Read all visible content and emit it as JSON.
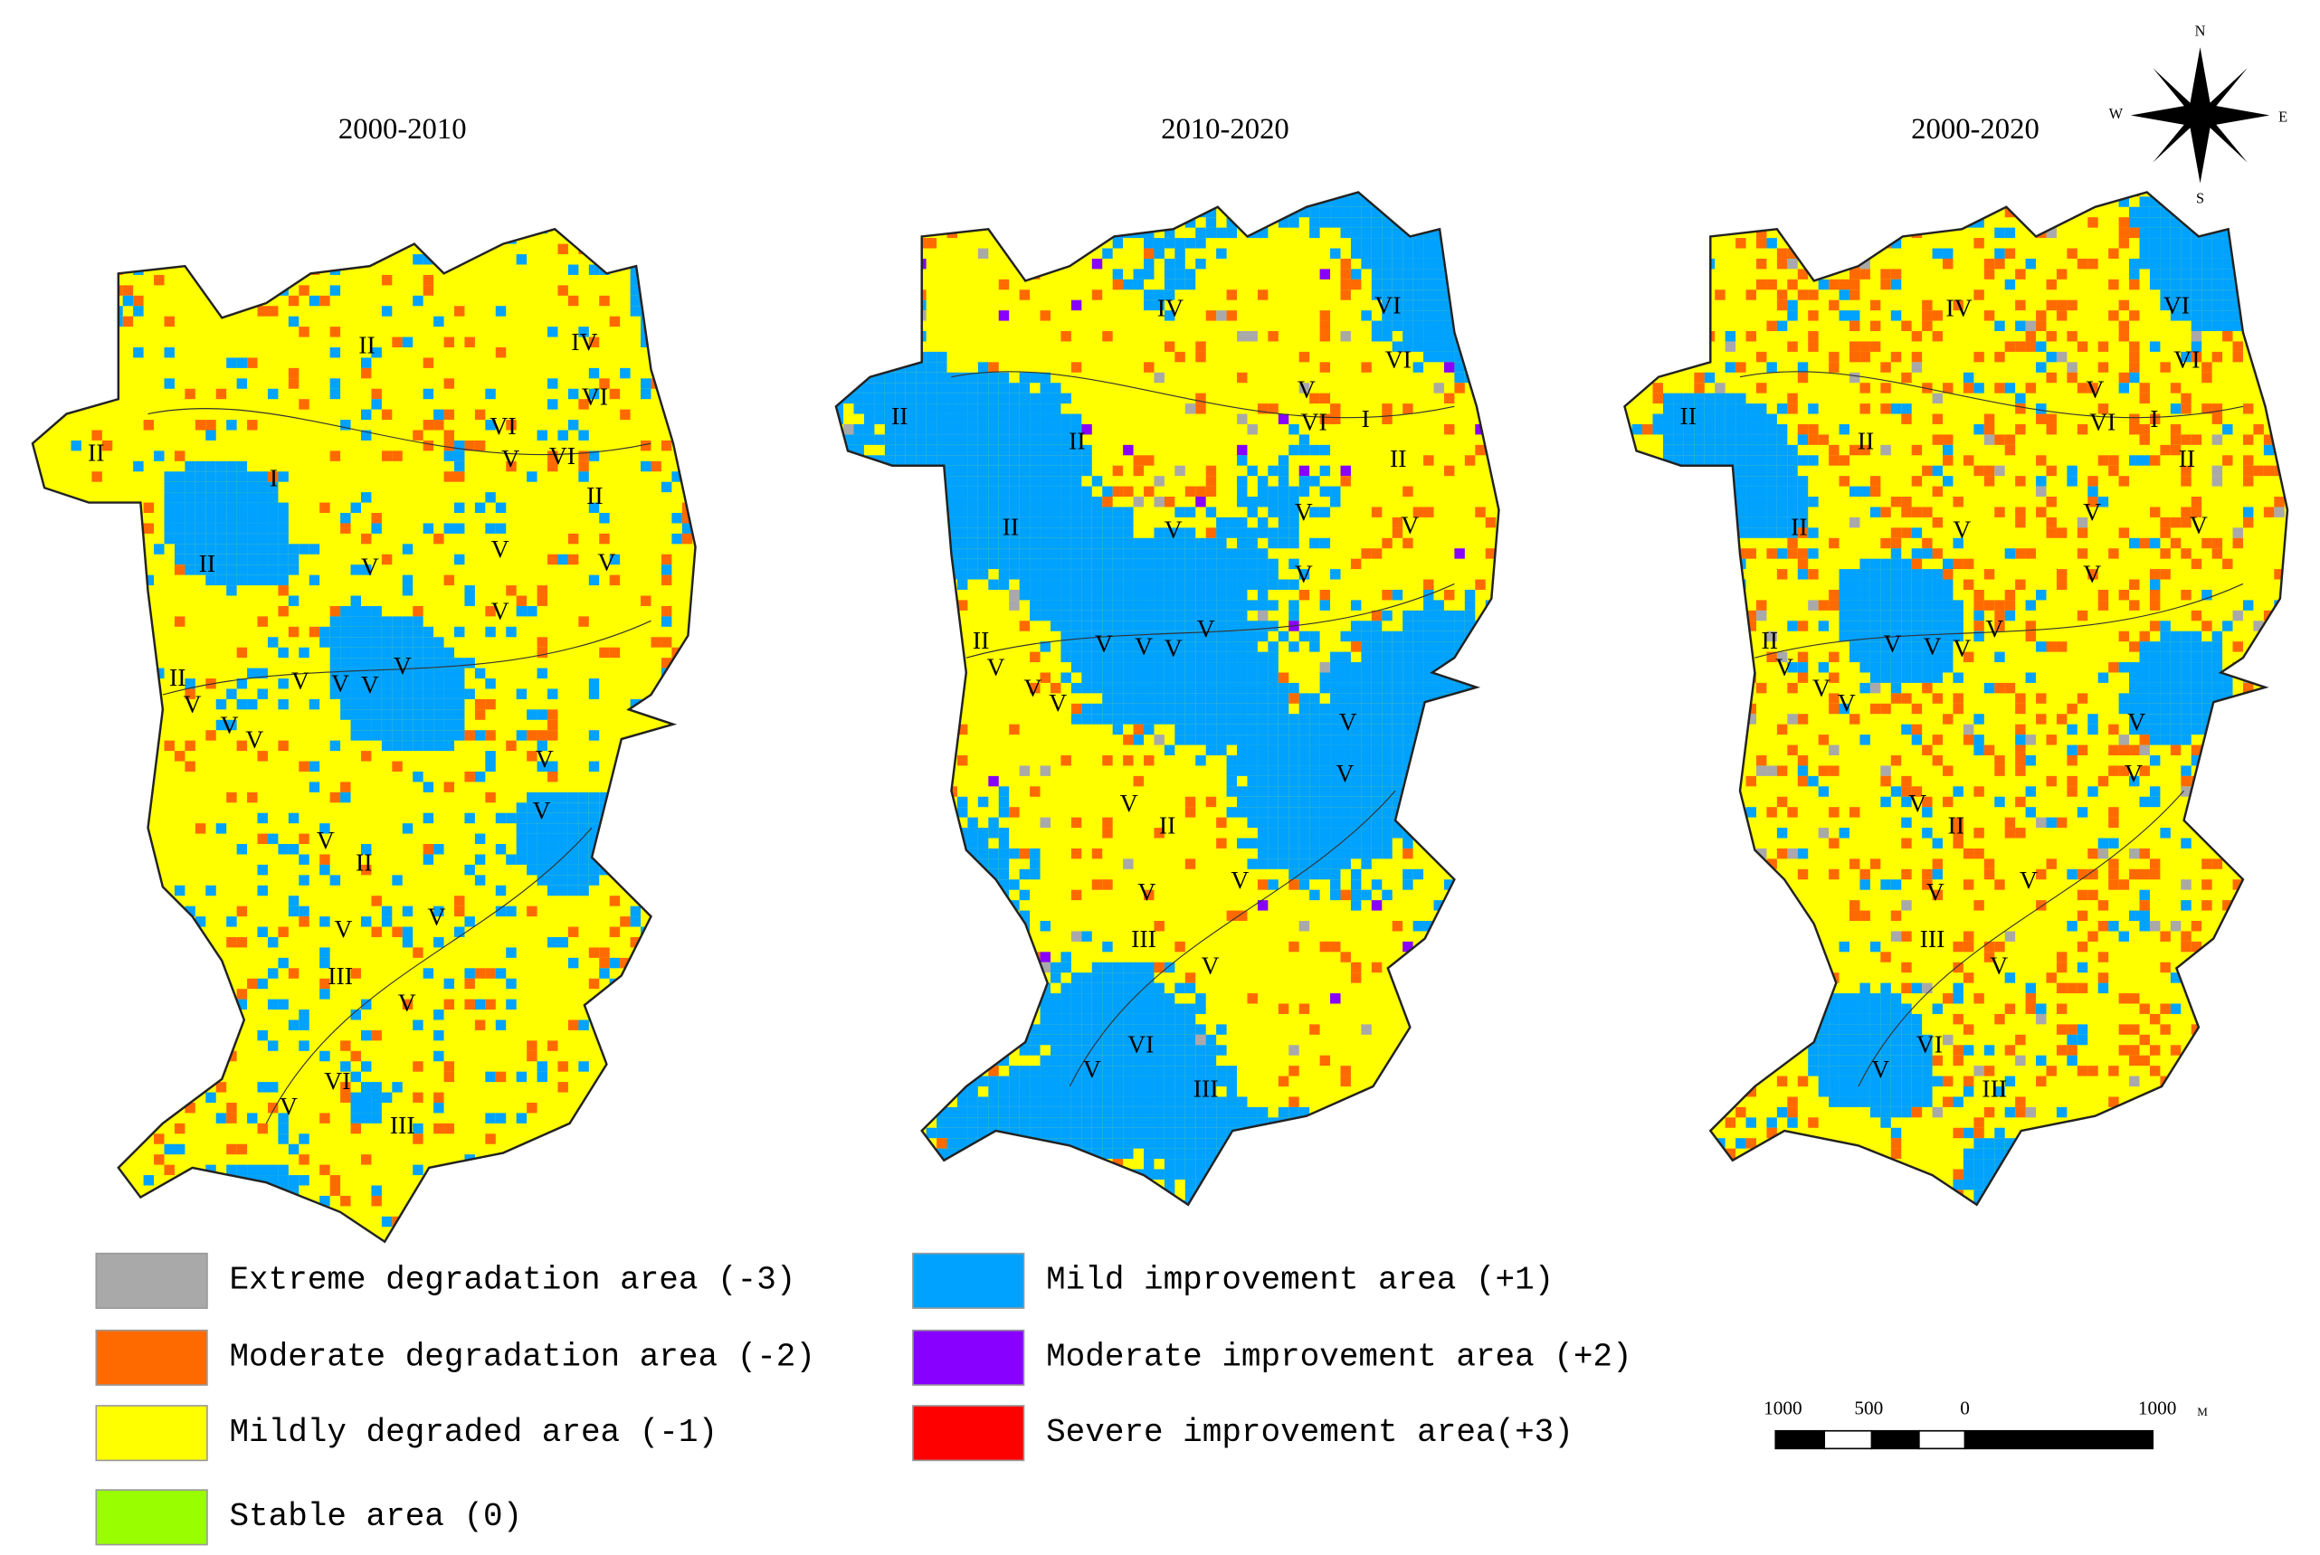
{
  "panels": [
    {
      "title": "2000-2010",
      "zone_labels": [
        "II",
        "I",
        "II",
        "IV",
        "VI",
        "VI",
        "V",
        "VI",
        "II",
        "II",
        "V",
        "V",
        "V",
        "V",
        "II",
        "V",
        "V",
        "V",
        "V",
        "V",
        "V",
        "V",
        "V",
        "V",
        "V",
        "II",
        "V",
        "V",
        "III",
        "V",
        "VI",
        "V",
        "III"
      ]
    },
    {
      "title": "2010-2020",
      "zone_labels": [
        "II",
        "II",
        "IV",
        "VI",
        "VI",
        "V",
        "VI",
        "I",
        "II",
        "II",
        "V",
        "V",
        "V",
        "V",
        "II",
        "V",
        "V",
        "V",
        "V",
        "V",
        "V",
        "V",
        "V",
        "V",
        "V",
        "II",
        "V",
        "V",
        "III",
        "V",
        "VI",
        "V",
        "III"
      ]
    },
    {
      "title": "2000-2020",
      "zone_labels": [
        "II",
        "II",
        "IV",
        "VI",
        "VI",
        "V",
        "VI",
        "I",
        "II",
        "II",
        "V",
        "V",
        "V",
        "V",
        "II",
        "V",
        "V",
        "V",
        "V",
        "V",
        "V",
        "V",
        "V",
        "V",
        "V",
        "II",
        "V",
        "V",
        "III",
        "V",
        "VI",
        "V",
        "III"
      ]
    }
  ],
  "legend": [
    {
      "label": "Extreme degradation area (-3)",
      "color": "#a9a9a9"
    },
    {
      "label": "Moderate degradation area (-2)",
      "color": "#ff6a00"
    },
    {
      "label": "Mildly degraded area (-1)",
      "color": "#ffff00"
    },
    {
      "label": "Stable area (0)",
      "color": "#99ff00"
    },
    {
      "label": "Mild improvement area (+1)",
      "color": "#00a2ff"
    },
    {
      "label": "Moderate improvement area (+2)",
      "color": "#8800ff"
    },
    {
      "label": "Severe improvement area(+3)",
      "color": "#ff0000"
    }
  ],
  "scale_bar": {
    "labels": [
      "1000",
      "500",
      "0",
      "1000"
    ],
    "unit": "M"
  },
  "compass": {
    "north": "N",
    "south": "S",
    "east": "E",
    "west": "W"
  }
}
